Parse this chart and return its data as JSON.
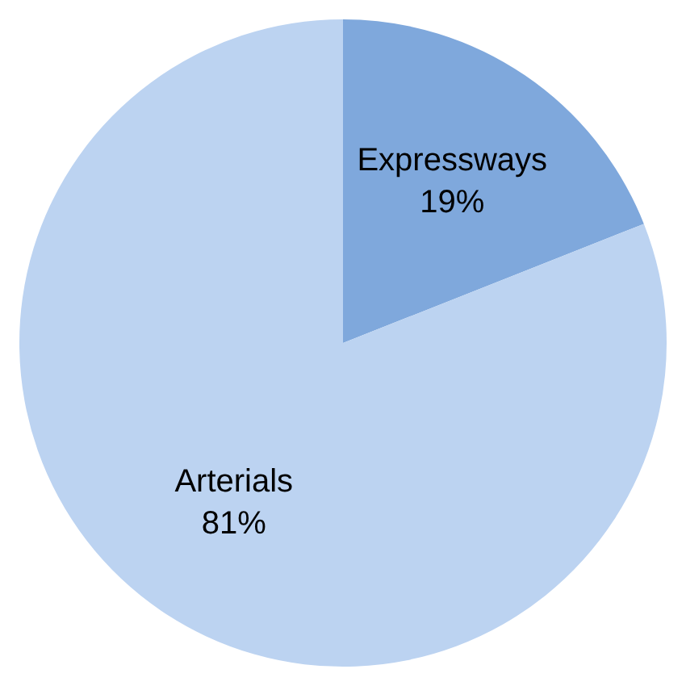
{
  "chart_data": {
    "type": "pie",
    "categories": [
      "Expressways",
      "Arterials"
    ],
    "values": [
      19,
      81
    ],
    "colors": [
      "#7fa8dc",
      "#bcd3f1"
    ],
    "value_labels": [
      "19%",
      "81%"
    ],
    "legend": false
  }
}
